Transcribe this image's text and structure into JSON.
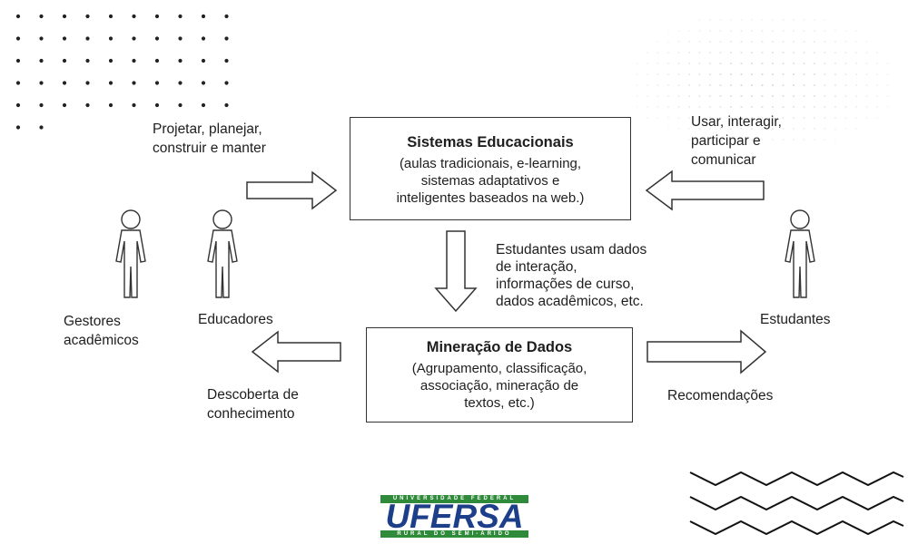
{
  "flow_labels": {
    "design": [
      "Projetar, planejar,",
      "construir e manter"
    ],
    "use": [
      "Usar, interagir,",
      "participar e",
      "comunicar"
    ],
    "data": [
      "Estudantes usam dados",
      "de interação,",
      "informações de curso,",
      "dados acadêmicos, etc."
    ],
    "discovery": [
      "Descoberta de",
      "conhecimento"
    ],
    "recommendations": "Recomendações"
  },
  "actors": {
    "managers": [
      "Gestores",
      "acadêmicos"
    ],
    "educators": "Educadores",
    "students": "Estudantes"
  },
  "systems_box": {
    "title": "Sistemas Educacionais",
    "lines": [
      "(aulas tradicionais, e-learning,",
      "sistemas adaptativos e",
      "inteligentes baseados na web.)"
    ]
  },
  "mining_box": {
    "title": "Mineração de Dados",
    "lines": [
      "(Agrupamento, classificação,",
      "associação, mineração de",
      "textos, etc.)"
    ]
  },
  "logo": {
    "top": "UNIVERSIDADE FEDERAL",
    "name": "UFERSA",
    "bottom": "RURAL DO SEMI-ÁRIDO",
    "green": "#2f8a3a",
    "navy": "#1d3f8a"
  }
}
